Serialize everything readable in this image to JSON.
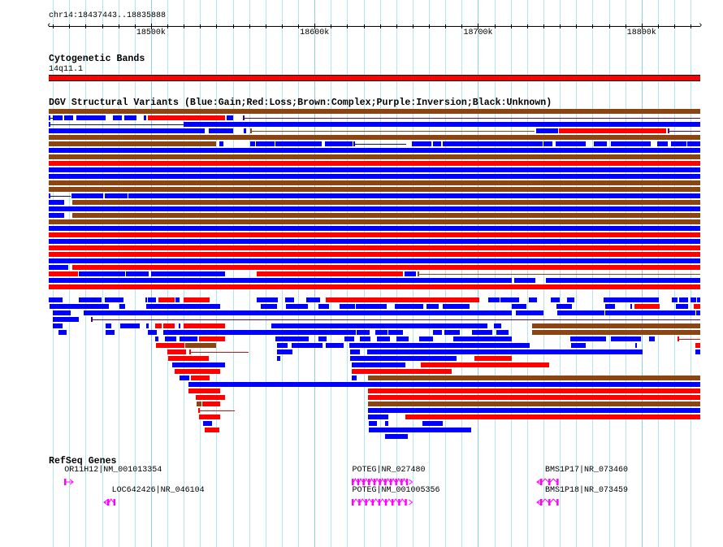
{
  "ruler": {
    "region_label": "chr14:18437443..18835888",
    "view_start_kb": 18437.443,
    "view_end_kb": 18835.888,
    "major_ticks": [
      {
        "kb": 18500,
        "label": "18500k"
      },
      {
        "kb": 18600,
        "label": "18600k"
      },
      {
        "kb": 18700,
        "label": "18700k"
      },
      {
        "kb": 18800,
        "label": "18800k"
      }
    ]
  },
  "cytoband": {
    "title": "Cytogenetic Bands",
    "band_label": "14q11.1",
    "color": "#ff0000"
  },
  "dgv": {
    "title": "DGV Structural Variants (Blue:Gain;Red:Loss;Brown:Complex;Purple:Inversion;Black:Unknown)",
    "colors": {
      "g": "#0000ff",
      "l": "#ff0000",
      "c": "#8b4513",
      "i": "#4b0082",
      "u": "#000000"
    },
    "upper_rows": [
      [
        [
          18437,
          18838,
          "c"
        ]
      ],
      [
        [
          18436.5,
          18440.5,
          "g",
          "t"
        ],
        [
          18440,
          18446,
          "g"
        ],
        [
          18447,
          18452.5,
          "g"
        ],
        [
          18454.5,
          18472,
          "g"
        ],
        [
          18476.5,
          18482,
          "g"
        ],
        [
          18483.5,
          18491,
          "g"
        ],
        [
          18495.5,
          18497,
          "g"
        ],
        [
          18498,
          18545.5,
          "l"
        ],
        [
          18546,
          18550,
          "g"
        ],
        [
          18556,
          18838,
          "i",
          "t"
        ]
      ],
      [
        [
          18437,
          18520,
          "g",
          "t"
        ],
        [
          18520,
          18838,
          "g"
        ]
      ],
      [
        [
          18436.5,
          18533,
          "g"
        ],
        [
          18535.5,
          18550,
          "g"
        ],
        [
          18556.5,
          18558,
          "g"
        ],
        [
          18560.5,
          18734.5,
          "c",
          "t"
        ],
        [
          18735.5,
          18749,
          "g"
        ],
        [
          18749.5,
          18815,
          "l"
        ],
        [
          18816,
          18838,
          "i",
          "t"
        ]
      ],
      [
        [
          18437,
          18838,
          "c"
        ]
      ],
      [
        [
          18436.5,
          18540,
          "c"
        ],
        [
          18542,
          18544.5,
          "g"
        ],
        [
          18560.5,
          18563.5,
          "g"
        ],
        [
          18564,
          18575.5,
          "g"
        ],
        [
          18576,
          18604.5,
          "g"
        ],
        [
          18606.5,
          18623.5,
          "g"
        ],
        [
          18623.5,
          18656,
          "g",
          "t"
        ],
        [
          18659.5,
          18671.5,
          "g"
        ],
        [
          18672.5,
          18677.5,
          "g"
        ],
        [
          18678.5,
          18739.5,
          "g"
        ],
        [
          18740,
          18745.5,
          "g"
        ],
        [
          18747.5,
          18766,
          "g"
        ],
        [
          18771,
          18779,
          "g"
        ],
        [
          18781,
          18805.5,
          "g"
        ],
        [
          18809.5,
          18816,
          "g"
        ],
        [
          18818,
          18827.5,
          "g"
        ],
        [
          18828,
          18838,
          "g"
        ]
      ],
      [
        [
          18437,
          18838,
          "g"
        ]
      ],
      [
        [
          18437,
          18838,
          "c"
        ]
      ],
      [
        [
          18437,
          18838,
          "l"
        ]
      ],
      [
        [
          18437,
          18838,
          "g"
        ]
      ],
      [
        [
          18437,
          18838,
          "g"
        ]
      ],
      [
        [
          18437,
          18838,
          "c"
        ]
      ],
      [
        [
          18437,
          18838,
          "c"
        ]
      ],
      [
        [
          18437,
          18451,
          "g",
          "t"
        ],
        [
          18451.5,
          18470.5,
          "g"
        ],
        [
          18471.5,
          18485.5,
          "g"
        ],
        [
          18486,
          18838,
          "g"
        ]
      ],
      [
        [
          18436.5,
          18447,
          "g"
        ],
        [
          18452,
          18838,
          "c"
        ]
      ],
      [
        [
          18437,
          18838,
          "g"
        ]
      ],
      [
        [
          18436.5,
          18447,
          "g"
        ],
        [
          18452,
          18838,
          "c"
        ]
      ],
      [
        [
          18437,
          18838,
          "c"
        ]
      ],
      [
        [
          18437,
          18838,
          "g"
        ]
      ],
      [
        [
          18437,
          18838,
          "l"
        ]
      ],
      [
        [
          18437,
          18838,
          "g"
        ]
      ],
      [
        [
          18437,
          18838,
          "l"
        ]
      ],
      [
        [
          18437,
          18838,
          "l"
        ]
      ],
      [
        [
          18437,
          18838,
          "g"
        ]
      ],
      [
        [
          18436.5,
          18449.5,
          "g"
        ],
        [
          18452,
          18838,
          "l"
        ]
      ],
      [
        [
          18436.5,
          18455.5,
          "l"
        ],
        [
          18456,
          18484,
          "g"
        ],
        [
          18484.5,
          18498.5,
          "g"
        ],
        [
          18500,
          18545.5,
          "g"
        ],
        [
          18564.5,
          18654,
          "l"
        ],
        [
          18655,
          18662,
          "g"
        ],
        [
          18663,
          18838,
          "c",
          "t"
        ]
      ],
      [
        [
          18437,
          18720.5,
          "g"
        ],
        [
          18722,
          18735,
          "g"
        ],
        [
          18741.5,
          18838,
          "g"
        ]
      ],
      [
        [
          18437,
          18838,
          "l"
        ]
      ]
    ],
    "lower_rows": [
      [
        [
          18436.5,
          18446,
          "g"
        ],
        [
          18456,
          18469.5,
          "g"
        ],
        [
          18471.5,
          18483,
          "g"
        ],
        [
          18496.5,
          18497.5,
          "g"
        ],
        [
          18498,
          18503,
          "g"
        ],
        [
          18504.5,
          18514.5,
          "l"
        ],
        [
          18515,
          18517.5,
          "g"
        ],
        [
          18520,
          18536,
          "l"
        ],
        [
          18564.5,
          18577.5,
          "g"
        ],
        [
          18582,
          18587.5,
          "g"
        ],
        [
          18595,
          18603.5,
          "g"
        ],
        [
          18607,
          18701,
          "l"
        ],
        [
          18706,
          18713,
          "g"
        ],
        [
          18713.5,
          18725,
          "g"
        ],
        [
          18731,
          18736,
          "g"
        ],
        [
          18744.5,
          18750,
          "g"
        ],
        [
          18754.5,
          18759,
          "g"
        ],
        [
          18777,
          18810.5,
          "g"
        ],
        [
          18818.5,
          18822,
          "g"
        ],
        [
          18823,
          18828.5,
          "g"
        ],
        [
          18830,
          18833.5,
          "g"
        ],
        [
          18834,
          18838,
          "g"
        ]
      ],
      [
        [
          18438,
          18474,
          "g"
        ],
        [
          18480.5,
          18484,
          "g"
        ],
        [
          18497,
          18542.5,
          "g"
        ],
        [
          18567,
          18577,
          "g"
        ],
        [
          18582.5,
          18596,
          "g"
        ],
        [
          18602.5,
          18609,
          "g"
        ],
        [
          18615.5,
          18624.5,
          "g"
        ],
        [
          18625,
          18644,
          "g"
        ],
        [
          18649,
          18666.5,
          "g"
        ],
        [
          18668.5,
          18676,
          "g"
        ],
        [
          18678.5,
          18695,
          "g"
        ],
        [
          18720.5,
          18729.5,
          "g"
        ],
        [
          18748,
          18757.5,
          "g"
        ],
        [
          18778,
          18783.5,
          "g"
        ],
        [
          18793,
          18794,
          "g"
        ],
        [
          18795.5,
          18811,
          "l"
        ],
        [
          18821,
          18828.5,
          "g"
        ],
        [
          18832,
          18838,
          "l"
        ]
      ],
      [
        [
          18440,
          18451,
          "g"
        ],
        [
          18459,
          18720.5,
          "g"
        ],
        [
          18723,
          18740,
          "g"
        ],
        [
          18748.5,
          18777.5,
          "g"
        ],
        [
          18778,
          18833,
          "g"
        ],
        [
          18833.5,
          18838,
          "g"
        ]
      ],
      [
        [
          18440,
          18456,
          "g"
        ],
        [
          18463.5,
          18838,
          "i",
          "t"
        ]
      ],
      [
        [
          18440,
          18446,
          "g"
        ],
        [
          18472,
          18475.5,
          "g"
        ],
        [
          18481,
          18493,
          "g"
        ],
        [
          18497,
          18498.5,
          "g"
        ],
        [
          18502.5,
          18506.5,
          "l"
        ],
        [
          18507.5,
          18514.5,
          "l"
        ],
        [
          18517,
          18518,
          "g"
        ],
        [
          18520,
          18545.5,
          "l"
        ],
        [
          18573.5,
          18705.5,
          "g"
        ],
        [
          18709.5,
          18714,
          "g"
        ],
        [
          18733,
          18838,
          "c"
        ]
      ],
      [
        [
          18443.5,
          18448.5,
          "g"
        ],
        [
          18472,
          18477.5,
          "g"
        ],
        [
          18498,
          18503.5,
          "g"
        ],
        [
          18507.5,
          18625,
          "g"
        ],
        [
          18625.5,
          18633.5,
          "g"
        ],
        [
          18637,
          18644.5,
          "g"
        ],
        [
          18645,
          18654,
          "g"
        ],
        [
          18672.5,
          18678,
          "g"
        ],
        [
          18679.5,
          18689,
          "g"
        ],
        [
          18696.5,
          18708.5,
          "g"
        ],
        [
          18711,
          18718.5,
          "g"
        ],
        [
          18733,
          18838,
          "c"
        ]
      ],
      [
        [
          18502.5,
          18504.5,
          "g"
        ],
        [
          18508.5,
          18515.5,
          "g"
        ],
        [
          18517.5,
          18528.5,
          "g"
        ],
        [
          18529.5,
          18545.5,
          "l"
        ],
        [
          18576,
          18596.5,
          "g"
        ],
        [
          18602.5,
          18607.5,
          "g"
        ],
        [
          18618.5,
          18624.5,
          "g"
        ],
        [
          18627.5,
          18634,
          "g"
        ],
        [
          18638,
          18646,
          "g"
        ],
        [
          18650,
          18657.5,
          "g"
        ],
        [
          18664,
          18672.5,
          "g"
        ],
        [
          18685,
          18720.5,
          "g"
        ],
        [
          18756.5,
          18778.5,
          "g"
        ],
        [
          18781,
          18799.5,
          "g"
        ],
        [
          18804.5,
          18808,
          "g"
        ],
        [
          18822,
          18838,
          "l",
          "t"
        ]
      ],
      [
        [
          18503,
          18520.5,
          "l"
        ],
        [
          18521,
          18540,
          "c"
        ],
        [
          18577,
          18583.5,
          "g"
        ],
        [
          18586,
          18605,
          "g"
        ],
        [
          18607,
          18618,
          "g"
        ],
        [
          18621.5,
          18731.5,
          "g"
        ],
        [
          18757,
          18766,
          "g"
        ],
        [
          18796,
          18797,
          "g"
        ],
        [
          18833,
          18838,
          "l"
        ]
      ],
      [
        [
          18510,
          18521.5,
          "l"
        ],
        [
          18523.5,
          18559.5,
          "l",
          "t"
        ],
        [
          18577,
          18586.5,
          "g"
        ],
        [
          18622,
          18627.5,
          "g"
        ],
        [
          18632,
          18800.5,
          "g"
        ],
        [
          18833,
          18838,
          "g"
        ]
      ],
      [
        [
          18510.5,
          18535.5,
          "l"
        ],
        [
          18577,
          18579,
          "g"
        ],
        [
          18622,
          18687,
          "g"
        ],
        [
          18698,
          18720.5,
          "l"
        ]
      ],
      [
        [
          18513,
          18545.5,
          "g"
        ],
        [
          18623,
          18655.5,
          "g"
        ],
        [
          18665,
          18743.5,
          "l"
        ]
      ],
      [
        [
          18514.5,
          18542.5,
          "l"
        ],
        [
          18623,
          18684,
          "l"
        ]
      ],
      [
        [
          18517.5,
          18523.5,
          "g"
        ],
        [
          18524.5,
          18536,
          "l"
        ],
        [
          18623,
          18625.5,
          "g"
        ],
        [
          18632.5,
          18838,
          "c"
        ]
      ],
      [
        [
          18523,
          18838,
          "g"
        ]
      ],
      [
        [
          18523,
          18542.5,
          "l"
        ],
        [
          18632.5,
          18838,
          "l"
        ]
      ],
      [
        [
          18527.5,
          18545.5,
          "l"
        ],
        [
          18632.5,
          18838,
          "l"
        ]
      ],
      [
        [
          18528,
          18531,
          "c"
        ],
        [
          18531.5,
          18542.5,
          "l"
        ],
        [
          18632.5,
          18838,
          "c"
        ]
      ],
      [
        [
          18529,
          18551,
          "l",
          "t"
        ],
        [
          18632.5,
          18838,
          "g"
        ]
      ],
      [
        [
          18529.5,
          18542.5,
          "l"
        ],
        [
          18632.5,
          18645,
          "g"
        ],
        [
          18655.5,
          18838,
          "l"
        ]
      ],
      [
        [
          18532,
          18537.5,
          "g"
        ],
        [
          18633,
          18638,
          "g"
        ],
        [
          18643,
          18645,
          "g"
        ],
        [
          18666,
          18678.5,
          "g"
        ]
      ],
      [
        [
          18533,
          18542,
          "l"
        ],
        [
          18633,
          18696,
          "g"
        ]
      ],
      [
        [
          18643,
          18657,
          "g"
        ]
      ]
    ]
  },
  "refseq": {
    "title": "RefSeq Genes",
    "color": "#ff00ff",
    "genes": [
      {
        "label": "OR11H12|NM_001013354",
        "start_kb": 18447,
        "end_kb": 18452,
        "strand": "+",
        "row": 0,
        "exons": 1
      },
      {
        "label": "LOC642426|NR_046104",
        "start_kb": 18473,
        "end_kb": 18480.5,
        "strand": "-",
        "row": 1,
        "exons": 2
      },
      {
        "label": "POTEG|NR_027480",
        "start_kb": 18623,
        "end_kb": 18659.5,
        "strand": "+",
        "row": 0,
        "exons": 11
      },
      {
        "label": "POTEG|NM_001005356",
        "start_kb": 18623,
        "end_kb": 18659.5,
        "strand": "+",
        "row": 1,
        "exons": 9
      },
      {
        "label": "BMS1P17|NR_073460",
        "start_kb": 18738,
        "end_kb": 18753,
        "strand": "-",
        "row": 0,
        "exons": 3
      },
      {
        "label": "BMS1P18|NR_073459",
        "start_kb": 18738,
        "end_kb": 18753,
        "strand": "-",
        "row": 1,
        "exons": 3
      }
    ]
  }
}
